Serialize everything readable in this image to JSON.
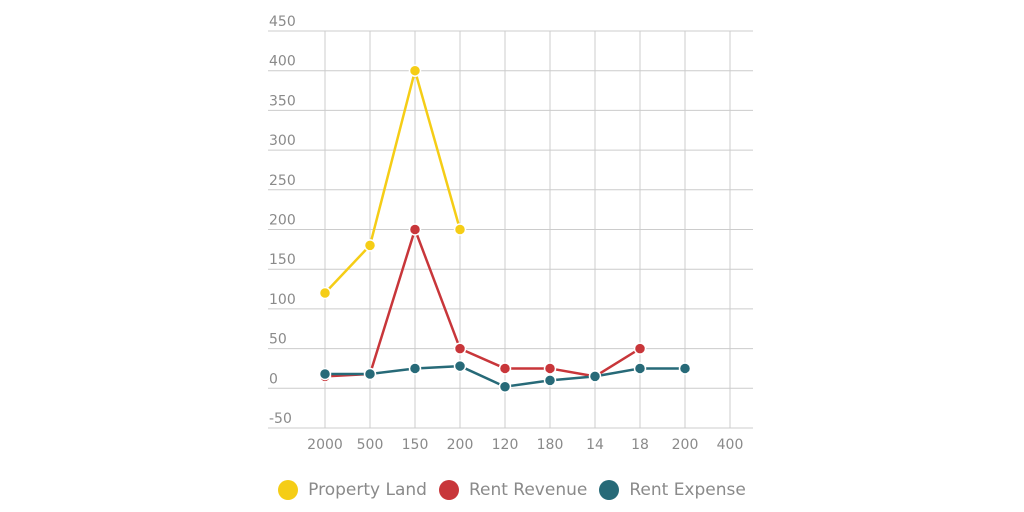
{
  "chart_data": {
    "type": "line",
    "title": "",
    "xlabel": "",
    "ylabel": "",
    "categories": [
      "2000",
      "500",
      "150",
      "200",
      "120",
      "180",
      "14",
      "18",
      "200",
      "400"
    ],
    "ylim": [
      -50,
      450
    ],
    "yticks": [
      -50,
      0,
      50,
      100,
      150,
      200,
      250,
      300,
      350,
      400,
      450
    ],
    "grid": true,
    "legend_position": "bottom",
    "series": [
      {
        "name": "Property Land",
        "color": "#f5cd16",
        "values": [
          120,
          180,
          400,
          200,
          null,
          null,
          null,
          null,
          null,
          null
        ]
      },
      {
        "name": "Rent Revenue",
        "color": "#c8363a",
        "values": [
          15,
          18,
          200,
          50,
          25,
          25,
          15,
          50,
          null,
          null
        ]
      },
      {
        "name": "Rent Expense",
        "color": "#276a78",
        "values": [
          18,
          18,
          25,
          28,
          2,
          10,
          15,
          25,
          25,
          null
        ]
      }
    ]
  }
}
